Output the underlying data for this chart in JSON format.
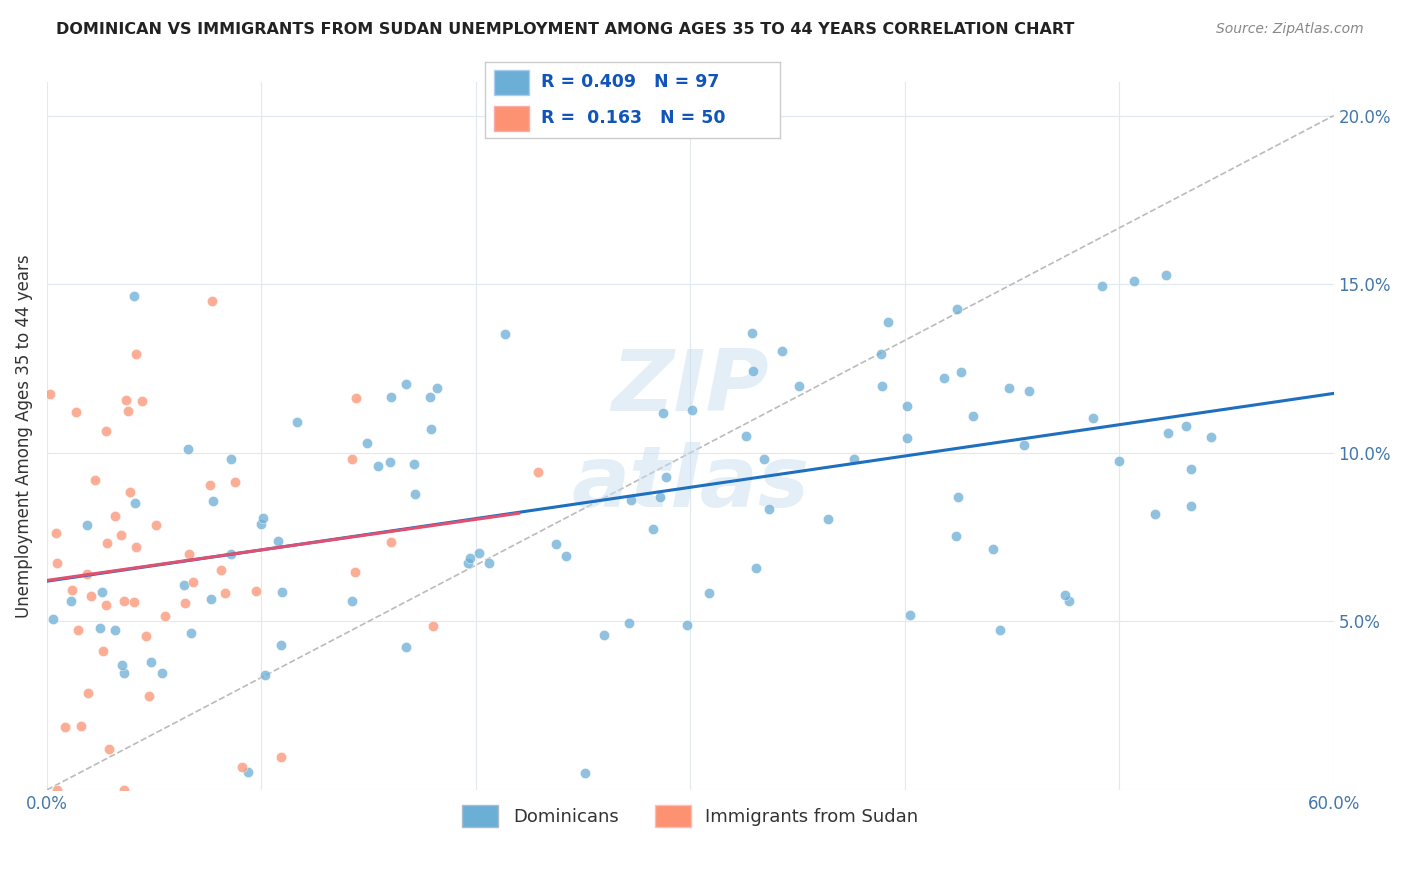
{
  "title": "DOMINICAN VS IMMIGRANTS FROM SUDAN UNEMPLOYMENT AMONG AGES 35 TO 44 YEARS CORRELATION CHART",
  "source": "Source: ZipAtlas.com",
  "ylabel": "Unemployment Among Ages 35 to 44 years",
  "xlim": [
    0.0,
    0.6
  ],
  "ylim": [
    0.0,
    0.21
  ],
  "xticks": [
    0.0,
    0.1,
    0.2,
    0.3,
    0.4,
    0.5,
    0.6
  ],
  "yticks": [
    0.0,
    0.05,
    0.1,
    0.15,
    0.2
  ],
  "ytick_labels": [
    "",
    "5.0%",
    "10.0%",
    "15.0%",
    "20.0%"
  ],
  "R_blue": 0.409,
  "N_blue": 97,
  "R_pink": 0.163,
  "N_pink": 50,
  "blue_color": "#6baed6",
  "pink_color": "#fc9272",
  "blue_label": "Dominicans",
  "pink_label": "Immigrants from Sudan",
  "background_color": "#ffffff",
  "seed_blue": 42,
  "seed_pink": 7
}
